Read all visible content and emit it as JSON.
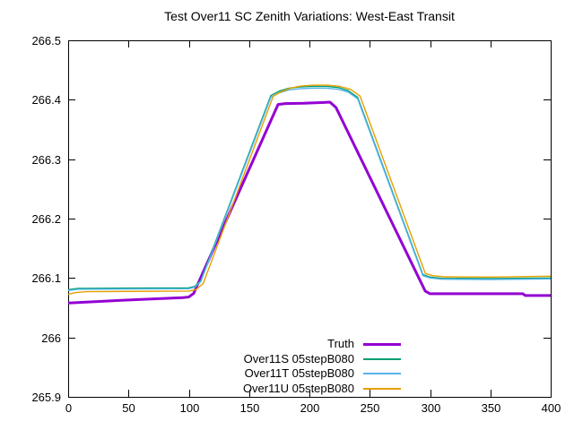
{
  "chart_data": {
    "type": "line",
    "title": "Test Over11 SC Zenith Variations: West-East Transit",
    "xlabel": "",
    "ylabel": "",
    "xlim": [
      0,
      400
    ],
    "ylim": [
      265.9,
      266.5
    ],
    "grid": false,
    "background": "#ffffff",
    "axis_color": "#000000",
    "legend_position": "inside-bottom-center",
    "x_ticks": [
      {
        "value": 0,
        "label": "0"
      },
      {
        "value": 50,
        "label": "50"
      },
      {
        "value": 100,
        "label": "100"
      },
      {
        "value": 150,
        "label": "150"
      },
      {
        "value": 200,
        "label": "200"
      },
      {
        "value": 250,
        "label": "250"
      },
      {
        "value": 300,
        "label": "300"
      },
      {
        "value": 350,
        "label": "350"
      },
      {
        "value": 400,
        "label": "400"
      }
    ],
    "y_ticks": [
      {
        "value": 265.9,
        "label": "265.9"
      },
      {
        "value": 266.0,
        "label": "266"
      },
      {
        "value": 266.1,
        "label": "266.1"
      },
      {
        "value": 266.2,
        "label": "266.2"
      },
      {
        "value": 266.3,
        "label": "266.3"
      },
      {
        "value": 266.4,
        "label": "266.4"
      },
      {
        "value": 266.5,
        "label": "266.5"
      }
    ],
    "series": [
      {
        "name": "Truth",
        "color": "#9400d3",
        "line_width": 3,
        "points": [
          [
            0,
            266.058
          ],
          [
            50,
            266.063
          ],
          [
            95,
            266.067
          ],
          [
            100,
            266.068
          ],
          [
            104,
            266.074
          ],
          [
            174,
            266.392
          ],
          [
            180,
            266.3935
          ],
          [
            195,
            266.394
          ],
          [
            212,
            266.3955
          ],
          [
            217,
            266.396
          ],
          [
            222,
            266.387
          ],
          [
            296,
            266.078
          ],
          [
            300,
            266.0735
          ],
          [
            377,
            266.0735
          ],
          [
            379,
            266.0705
          ],
          [
            400,
            266.0705
          ]
        ]
      },
      {
        "name": "Over11S 05stepB080",
        "color": "#009e73",
        "line_width": 1.4,
        "points": [
          [
            0,
            266.0805
          ],
          [
            8,
            266.0825
          ],
          [
            50,
            266.083
          ],
          [
            100,
            266.0835
          ],
          [
            105,
            266.086
          ],
          [
            110,
            266.096
          ],
          [
            168,
            266.407
          ],
          [
            175,
            266.4145
          ],
          [
            183,
            266.4195
          ],
          [
            192,
            266.4215
          ],
          [
            202,
            266.4225
          ],
          [
            214,
            266.4225
          ],
          [
            224,
            266.4205
          ],
          [
            232,
            266.4155
          ],
          [
            240,
            266.404
          ],
          [
            294,
            266.106
          ],
          [
            300,
            266.1015
          ],
          [
            310,
            266.0995
          ],
          [
            350,
            266.099
          ],
          [
            400,
            266.1
          ]
        ]
      },
      {
        "name": "Over11T 05stepB080",
        "color": "#56b4e9",
        "line_width": 1.4,
        "points": [
          [
            0,
            266.079
          ],
          [
            8,
            266.081
          ],
          [
            50,
            266.0815
          ],
          [
            100,
            266.082
          ],
          [
            105,
            266.0845
          ],
          [
            110,
            266.094
          ],
          [
            168,
            266.404
          ],
          [
            175,
            266.4115
          ],
          [
            183,
            266.4165
          ],
          [
            192,
            266.4185
          ],
          [
            202,
            266.4195
          ],
          [
            214,
            266.4195
          ],
          [
            224,
            266.4175
          ],
          [
            232,
            266.413
          ],
          [
            240,
            266.4015
          ],
          [
            294,
            266.104
          ],
          [
            300,
            266.1
          ],
          [
            310,
            266.098
          ],
          [
            350,
            266.0975
          ],
          [
            400,
            266.0985
          ]
        ]
      },
      {
        "name": "Over11U 05stepB080",
        "color": "#e69f00",
        "line_width": 1.4,
        "points": [
          [
            0,
            266.0725
          ],
          [
            6,
            266.0755
          ],
          [
            15,
            266.077
          ],
          [
            50,
            266.0775
          ],
          [
            100,
            266.078
          ],
          [
            106,
            266.0805
          ],
          [
            112,
            266.091
          ],
          [
            170,
            266.406
          ],
          [
            177,
            266.414
          ],
          [
            185,
            266.42
          ],
          [
            193,
            266.423
          ],
          [
            203,
            266.4245
          ],
          [
            215,
            266.4245
          ],
          [
            225,
            266.4225
          ],
          [
            234,
            266.4175
          ],
          [
            242,
            266.406
          ],
          [
            296,
            266.108
          ],
          [
            302,
            266.104
          ],
          [
            312,
            266.102
          ],
          [
            350,
            266.1015
          ],
          [
            400,
            266.103
          ]
        ]
      }
    ]
  }
}
